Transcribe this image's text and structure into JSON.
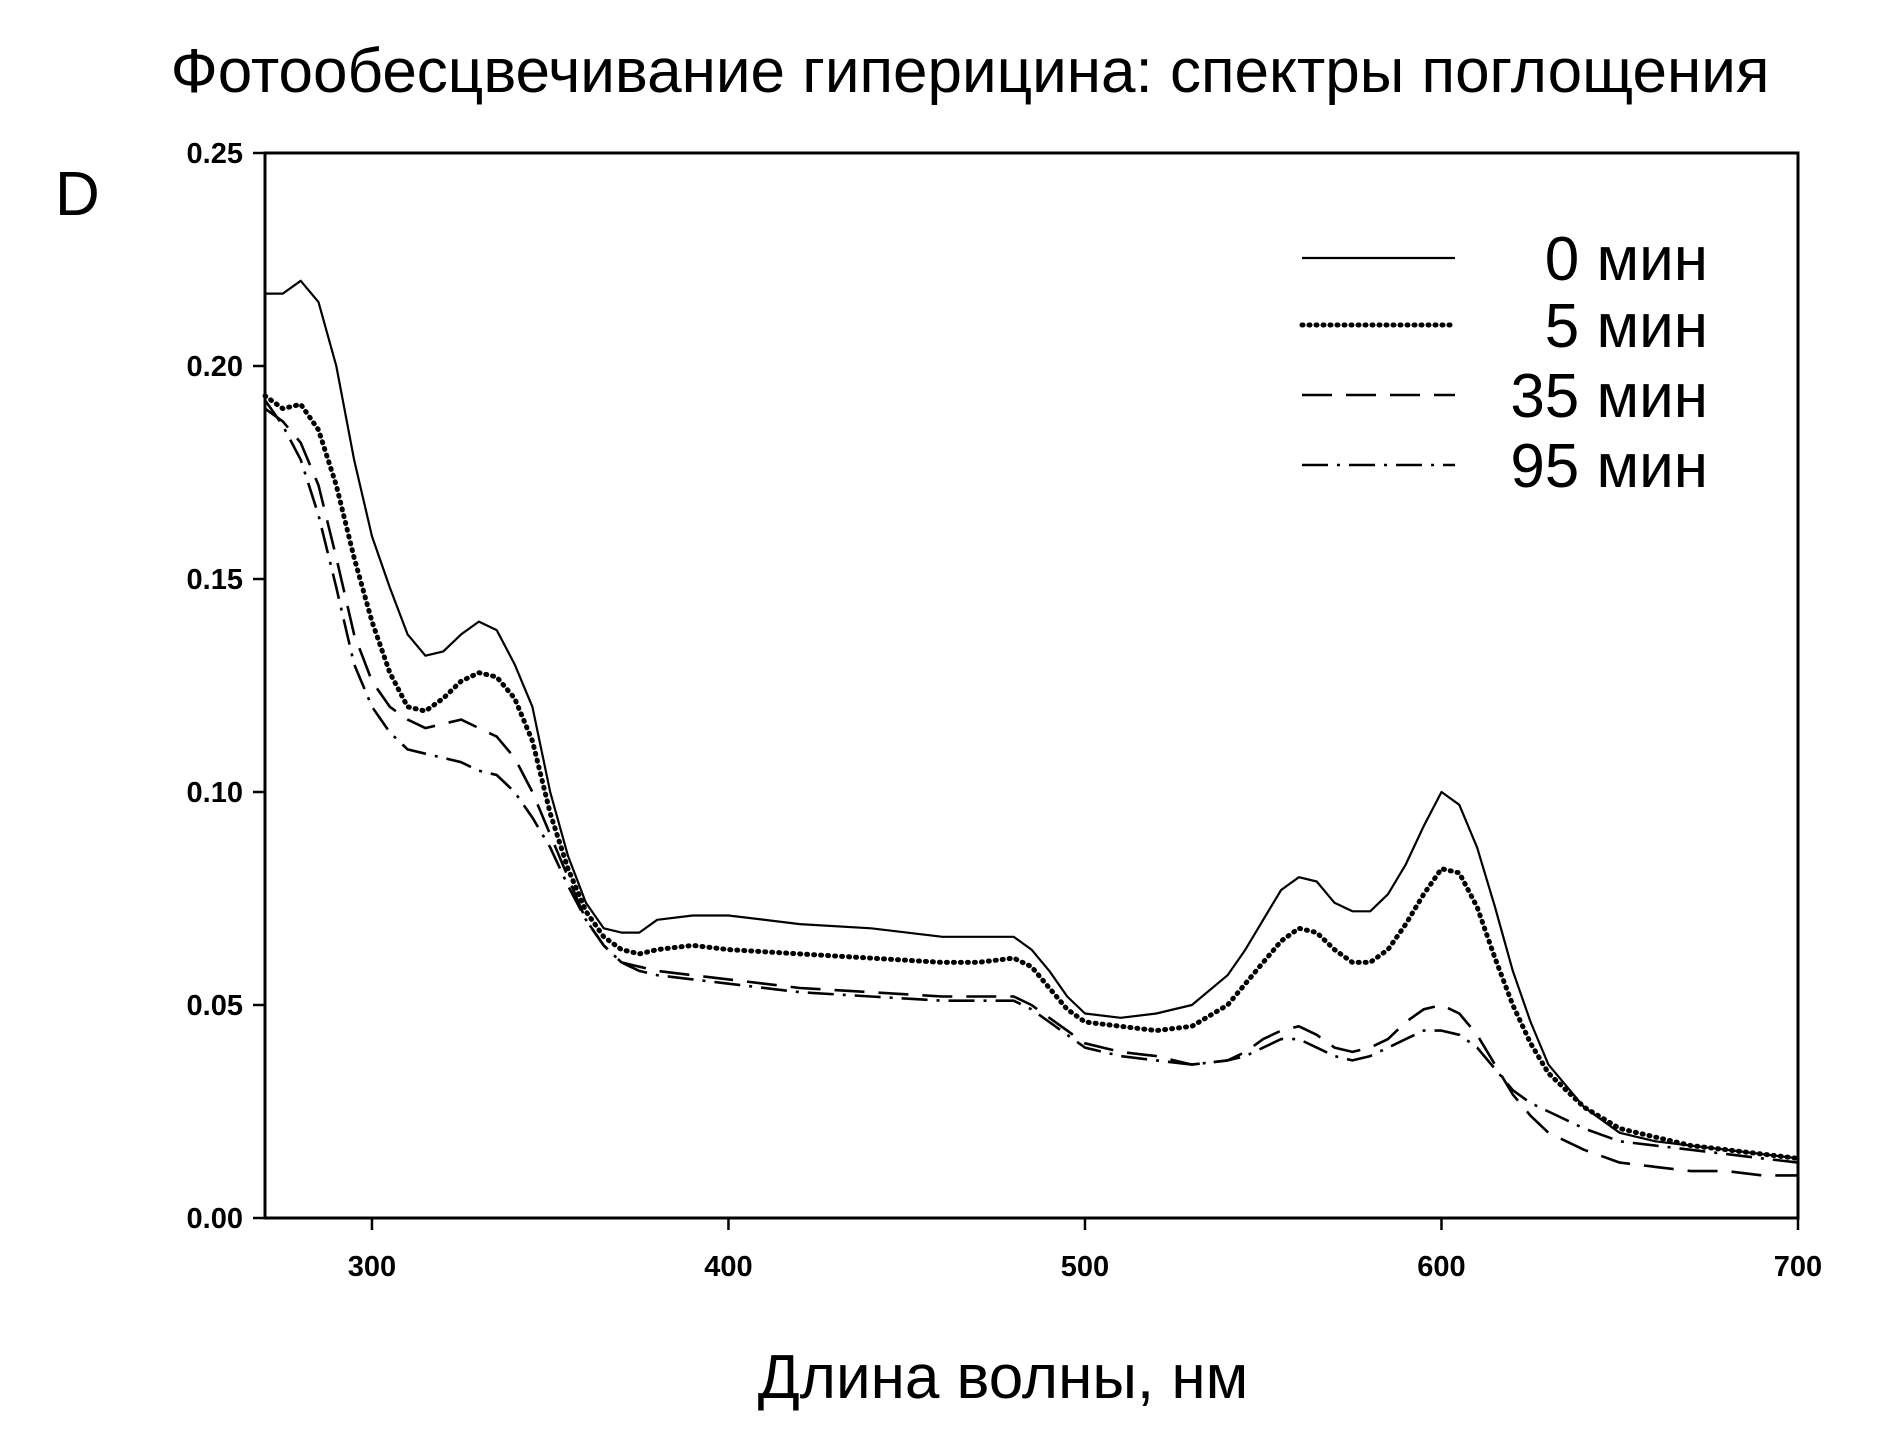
{
  "chart_data": {
    "type": "line",
    "title": "Фотообесцвечивание гиперицина: спектры поглощения",
    "xlabel": "Длина волны, нм",
    "ylabel": "D",
    "xlim": [
      270,
      700
    ],
    "ylim": [
      0,
      0.25
    ],
    "xticks": [
      "300",
      "400",
      "500",
      "600",
      "700"
    ],
    "yticks": [
      "0.00",
      "0.05",
      "0.10",
      "0.15",
      "0.20",
      "0.25"
    ],
    "grid": false,
    "legend_position": "top-right",
    "series": [
      {
        "name": "0 мин",
        "style": "solid",
        "x": [
          270,
          275,
          280,
          285,
          290,
          295,
          300,
          305,
          310,
          315,
          320,
          325,
          330,
          335,
          340,
          345,
          350,
          355,
          360,
          365,
          370,
          375,
          380,
          390,
          400,
          420,
          440,
          460,
          470,
          480,
          485,
          490,
          495,
          500,
          510,
          520,
          530,
          540,
          545,
          550,
          555,
          560,
          565,
          570,
          575,
          580,
          585,
          590,
          595,
          600,
          605,
          610,
          615,
          620,
          625,
          630,
          640,
          650,
          660,
          670,
          680,
          690,
          700
        ],
        "y": [
          0.217,
          0.217,
          0.22,
          0.215,
          0.2,
          0.178,
          0.16,
          0.148,
          0.137,
          0.132,
          0.133,
          0.137,
          0.14,
          0.138,
          0.13,
          0.12,
          0.1,
          0.085,
          0.074,
          0.068,
          0.067,
          0.067,
          0.07,
          0.071,
          0.071,
          0.069,
          0.068,
          0.066,
          0.066,
          0.066,
          0.063,
          0.058,
          0.052,
          0.048,
          0.047,
          0.048,
          0.05,
          0.057,
          0.063,
          0.07,
          0.077,
          0.08,
          0.079,
          0.074,
          0.072,
          0.072,
          0.076,
          0.083,
          0.092,
          0.1,
          0.097,
          0.087,
          0.073,
          0.058,
          0.046,
          0.036,
          0.026,
          0.02,
          0.018,
          0.017,
          0.016,
          0.015,
          0.014
        ]
      },
      {
        "name": "5 мин",
        "style": "dotted",
        "x": [
          270,
          275,
          280,
          285,
          290,
          295,
          300,
          305,
          310,
          315,
          320,
          325,
          330,
          335,
          340,
          345,
          350,
          355,
          360,
          365,
          370,
          375,
          380,
          390,
          400,
          420,
          440,
          460,
          470,
          480,
          485,
          490,
          495,
          500,
          510,
          520,
          530,
          540,
          545,
          550,
          555,
          560,
          565,
          570,
          575,
          580,
          585,
          590,
          595,
          600,
          605,
          610,
          615,
          620,
          625,
          630,
          640,
          650,
          660,
          670,
          680,
          690,
          700
        ],
        "y": [
          0.193,
          0.19,
          0.191,
          0.185,
          0.172,
          0.155,
          0.14,
          0.128,
          0.12,
          0.119,
          0.122,
          0.126,
          0.128,
          0.127,
          0.122,
          0.112,
          0.095,
          0.082,
          0.072,
          0.066,
          0.063,
          0.062,
          0.063,
          0.064,
          0.063,
          0.062,
          0.061,
          0.06,
          0.06,
          0.061,
          0.059,
          0.054,
          0.049,
          0.046,
          0.045,
          0.044,
          0.045,
          0.05,
          0.055,
          0.06,
          0.065,
          0.068,
          0.067,
          0.063,
          0.06,
          0.06,
          0.063,
          0.069,
          0.076,
          0.082,
          0.081,
          0.073,
          0.061,
          0.05,
          0.041,
          0.034,
          0.026,
          0.021,
          0.019,
          0.017,
          0.016,
          0.015,
          0.014
        ]
      },
      {
        "name": "35 мин",
        "style": "dashed",
        "x": [
          270,
          275,
          280,
          285,
          290,
          295,
          300,
          305,
          310,
          315,
          320,
          325,
          330,
          335,
          340,
          345,
          350,
          355,
          360,
          365,
          370,
          375,
          380,
          390,
          400,
          420,
          440,
          460,
          470,
          480,
          485,
          490,
          495,
          500,
          510,
          520,
          530,
          540,
          545,
          550,
          555,
          560,
          565,
          570,
          575,
          580,
          585,
          590,
          595,
          600,
          605,
          610,
          615,
          620,
          625,
          630,
          640,
          650,
          660,
          670,
          680,
          690,
          700
        ],
        "y": [
          0.19,
          0.187,
          0.182,
          0.172,
          0.155,
          0.137,
          0.126,
          0.12,
          0.117,
          0.115,
          0.116,
          0.117,
          0.115,
          0.113,
          0.108,
          0.1,
          0.09,
          0.08,
          0.07,
          0.064,
          0.06,
          0.059,
          0.058,
          0.057,
          0.056,
          0.054,
          0.053,
          0.052,
          0.052,
          0.052,
          0.05,
          0.047,
          0.044,
          0.041,
          0.039,
          0.038,
          0.036,
          0.037,
          0.039,
          0.042,
          0.044,
          0.045,
          0.043,
          0.04,
          0.039,
          0.04,
          0.042,
          0.046,
          0.049,
          0.05,
          0.048,
          0.043,
          0.036,
          0.029,
          0.024,
          0.02,
          0.016,
          0.013,
          0.012,
          0.011,
          0.011,
          0.01,
          0.01
        ]
      },
      {
        "name": "95 мин",
        "style": "dashdot",
        "x": [
          270,
          275,
          280,
          285,
          290,
          295,
          300,
          305,
          310,
          315,
          320,
          325,
          330,
          335,
          340,
          345,
          350,
          355,
          360,
          365,
          370,
          375,
          380,
          390,
          400,
          420,
          440,
          460,
          470,
          480,
          485,
          490,
          495,
          500,
          510,
          520,
          530,
          540,
          545,
          550,
          555,
          560,
          565,
          570,
          575,
          580,
          585,
          590,
          595,
          600,
          605,
          610,
          615,
          620,
          625,
          630,
          640,
          650,
          660,
          670,
          680,
          690,
          700
        ],
        "y": [
          0.192,
          0.186,
          0.178,
          0.165,
          0.148,
          0.13,
          0.12,
          0.114,
          0.11,
          0.109,
          0.108,
          0.107,
          0.105,
          0.104,
          0.1,
          0.094,
          0.087,
          0.078,
          0.07,
          0.064,
          0.06,
          0.058,
          0.057,
          0.056,
          0.055,
          0.053,
          0.052,
          0.051,
          0.051,
          0.051,
          0.049,
          0.046,
          0.043,
          0.04,
          0.038,
          0.037,
          0.036,
          0.037,
          0.038,
          0.04,
          0.042,
          0.042,
          0.04,
          0.038,
          0.037,
          0.038,
          0.04,
          0.042,
          0.044,
          0.044,
          0.043,
          0.04,
          0.035,
          0.03,
          0.027,
          0.025,
          0.021,
          0.018,
          0.017,
          0.016,
          0.015,
          0.014,
          0.013
        ]
      }
    ]
  }
}
